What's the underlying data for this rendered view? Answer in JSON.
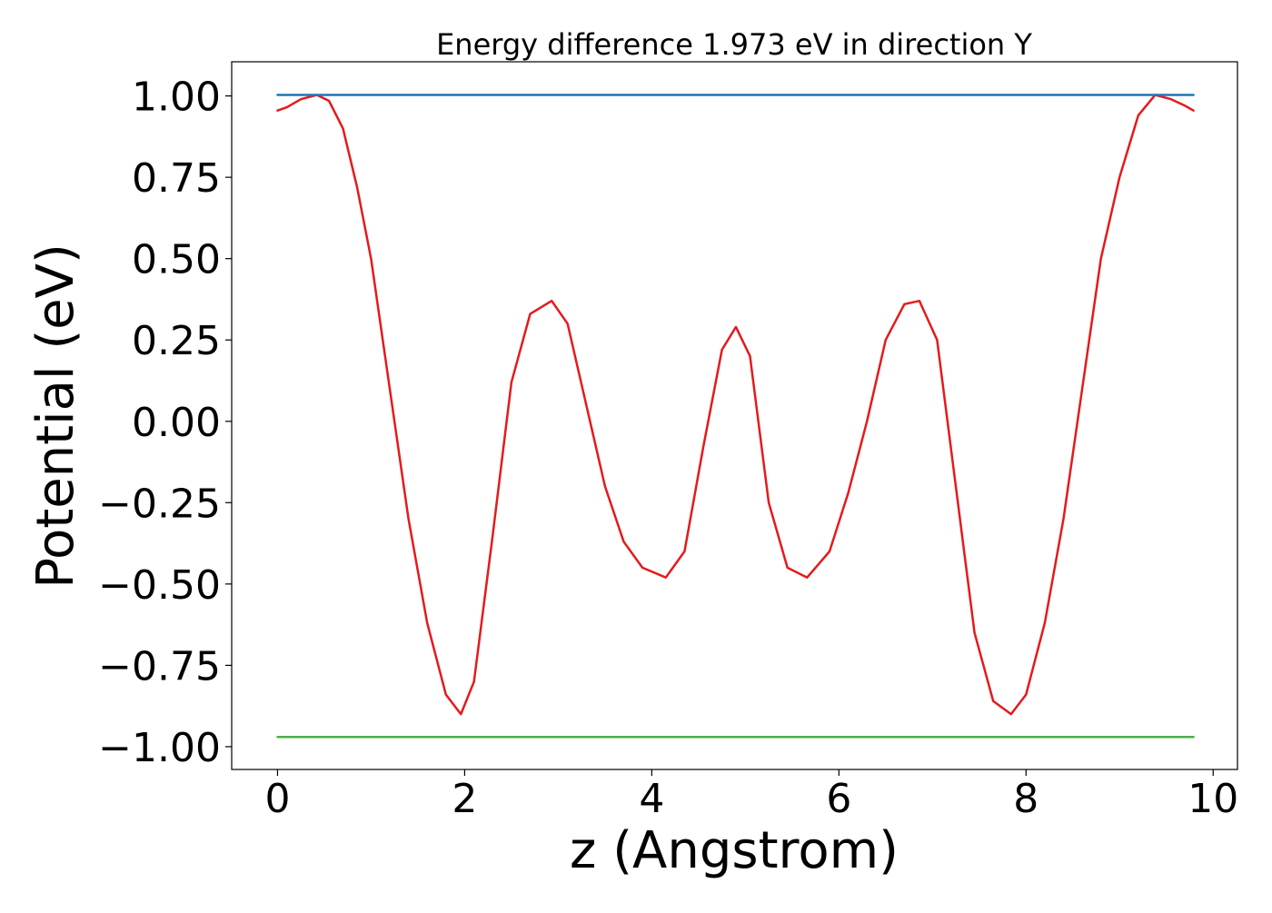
{
  "chart_data": {
    "type": "line",
    "title": "Energy difference 1.973 eV in direction Y",
    "xlabel": "z (Angstrom)",
    "ylabel": "Potential (eV)",
    "xlim": [
      -0.49,
      10.26
    ],
    "ylim": [
      -1.07,
      1.105
    ],
    "x_ticks": [
      0,
      2,
      4,
      6,
      8,
      10
    ],
    "x_tick_labels": [
      "0",
      "2",
      "4",
      "6",
      "8",
      "10"
    ],
    "y_ticks": [
      1.0,
      0.75,
      0.5,
      0.25,
      0.0,
      -0.25,
      -0.5,
      -0.75,
      -1.0
    ],
    "y_tick_labels": [
      "1.00",
      "0.75",
      "0.50",
      "0.25",
      "0.00",
      "−0.25",
      "−0.50",
      "−0.75",
      "−1.00"
    ],
    "grid": false,
    "legend": "none",
    "series": [
      {
        "color": "#e41a1c",
        "x": [
          0.0,
          0.1,
          0.25,
          0.42,
          0.55,
          0.7,
          0.85,
          1.0,
          1.2,
          1.4,
          1.6,
          1.8,
          1.96,
          2.1,
          2.3,
          2.5,
          2.7,
          2.93,
          3.1,
          3.3,
          3.5,
          3.7,
          3.9,
          4.15,
          4.35,
          4.55,
          4.75,
          4.9,
          5.05,
          5.25,
          5.45,
          5.66,
          5.9,
          6.1,
          6.3,
          6.5,
          6.7,
          6.86,
          7.05,
          7.25,
          7.45,
          7.65,
          7.84,
          8.0,
          8.2,
          8.4,
          8.6,
          8.8,
          9.0,
          9.2,
          9.38,
          9.55,
          9.7,
          9.79
        ],
        "y": [
          0.955,
          0.965,
          0.99,
          1.003,
          0.985,
          0.9,
          0.72,
          0.5,
          0.1,
          -0.3,
          -0.62,
          -0.84,
          -0.9,
          -0.8,
          -0.35,
          0.12,
          0.33,
          0.37,
          0.3,
          0.05,
          -0.2,
          -0.37,
          -0.45,
          -0.48,
          -0.4,
          -0.08,
          0.22,
          0.29,
          0.2,
          -0.25,
          -0.45,
          -0.48,
          -0.4,
          -0.22,
          0.0,
          0.25,
          0.36,
          0.37,
          0.25,
          -0.2,
          -0.65,
          -0.86,
          -0.9,
          -0.84,
          -0.62,
          -0.3,
          0.1,
          0.5,
          0.75,
          0.94,
          1.003,
          0.99,
          0.97,
          0.955
        ]
      },
      {
        "color": "#1f77b4",
        "x": [
          0.0,
          9.79
        ],
        "y": [
          1.003,
          1.003
        ]
      },
      {
        "color": "#4daf4a",
        "x": [
          0.0,
          9.79
        ],
        "y": [
          -0.97,
          -0.97
        ]
      }
    ]
  }
}
